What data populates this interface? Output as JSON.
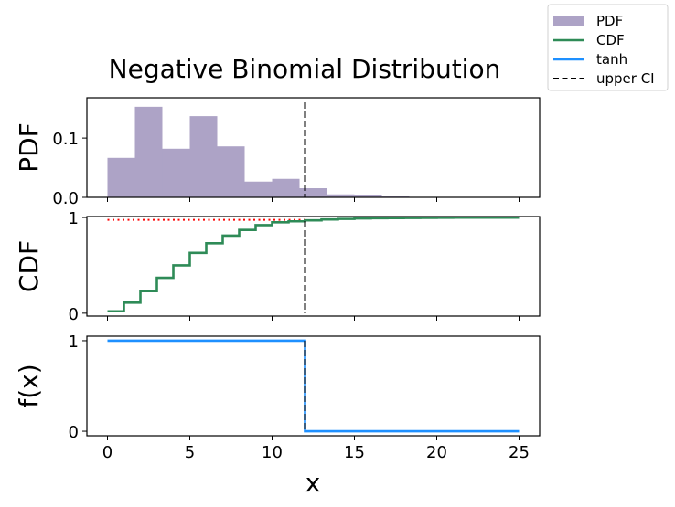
{
  "chart_data": {
    "type": "multi-panel",
    "title": "Negative Binomial Distribution",
    "xlabel": "x",
    "xlim": [
      -1.25,
      26.25
    ],
    "xticks": [
      0,
      5,
      10,
      15,
      20,
      25
    ],
    "xtick_labels": [
      "0",
      "5",
      "10",
      "15",
      "20",
      "25"
    ],
    "upper_ci": 12,
    "colors": {
      "pdf": "#ada3c6",
      "cdf": "#2e8b57",
      "tanh": "#1e90ff",
      "ci": "#000000",
      "cdf_level": "#ff0000"
    },
    "legend": {
      "placement": "top-right",
      "entries": [
        {
          "label": "PDF",
          "kind": "patch",
          "color": "#ada3c6"
        },
        {
          "label": "CDF",
          "kind": "line",
          "color": "#2e8b57"
        },
        {
          "label": "tanh",
          "kind": "line",
          "color": "#1e90ff"
        },
        {
          "label": "upper CI",
          "kind": "dashed",
          "color": "#000000"
        }
      ]
    },
    "panels": [
      {
        "name": "pdf",
        "type": "bar",
        "ylabel": "PDF",
        "ylim": [
          0,
          0.168
        ],
        "yticks": [
          0.0,
          0.1
        ],
        "ytick_labels": [
          "0.0",
          "0.1"
        ],
        "bin_edges": [
          0,
          1.667,
          3.333,
          5,
          6.667,
          8.333,
          10,
          11.667,
          13.333,
          15,
          16.667,
          18.333,
          20,
          21.667,
          23.333,
          25
        ],
        "values": [
          0.0666,
          0.1528,
          0.082,
          0.137,
          0.086,
          0.0266,
          0.0312,
          0.0154,
          0.005,
          0.0035,
          0.0015,
          0.0,
          0.0,
          0.0,
          0.0
        ]
      },
      {
        "name": "cdf",
        "type": "line",
        "ylabel": "CDF",
        "ylim": [
          -0.03,
          1.01
        ],
        "yticks": [
          0,
          1
        ],
        "ytick_labels": [
          "0",
          "1"
        ],
        "x": [
          0,
          1,
          2,
          3,
          4,
          5,
          6,
          7,
          8,
          9,
          10,
          11,
          12,
          13,
          14,
          15,
          16,
          17,
          18,
          19,
          20,
          21,
          22,
          23,
          24,
          25
        ],
        "values": [
          0.02,
          0.11,
          0.23,
          0.37,
          0.5,
          0.63,
          0.73,
          0.81,
          0.87,
          0.92,
          0.95,
          0.96,
          0.97,
          0.98,
          0.985,
          0.99,
          0.992,
          0.994,
          0.995,
          0.996,
          0.997,
          0.998,
          0.998,
          0.999,
          0.999,
          0.999
        ],
        "level_line": {
          "y": 0.975,
          "x_range": [
            0,
            12
          ]
        }
      },
      {
        "name": "fx",
        "type": "line",
        "ylabel": "f(x)",
        "ylim": [
          -0.05,
          1.05
        ],
        "yticks": [
          0,
          1
        ],
        "ytick_labels": [
          "0",
          "1"
        ],
        "x": [
          0,
          12,
          12,
          25
        ],
        "values": [
          1,
          1,
          0,
          0
        ]
      }
    ]
  }
}
